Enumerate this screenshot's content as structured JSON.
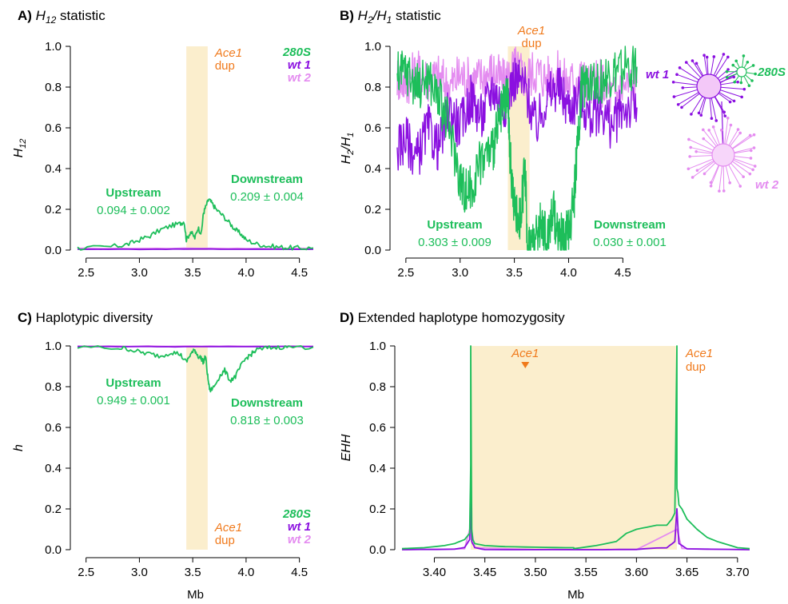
{
  "colors": {
    "s280": "#1dbe5a",
    "wt1": "#8b10e0",
    "wt2": "#e48cf0",
    "dup_text": "#f07a1c",
    "dup_fill": "#fbeecd",
    "axis": "#000000"
  },
  "chart_data": [
    {
      "id": "A",
      "type": "line",
      "panel_letter": "A)",
      "title": "H12 statistic",
      "title_sym": "H",
      "title_sub": "12",
      "title_rest": " statistic",
      "ylabel": "H",
      "ylabel_sub": "12",
      "xlabel": "",
      "xlim": [
        2.42,
        4.63
      ],
      "ylim": [
        0,
        1.0
      ],
      "xticks": [
        "2.5",
        "3.0",
        "3.5",
        "4.0",
        "4.5"
      ],
      "xtick_values": [
        2.5,
        3.0,
        3.5,
        4.0,
        4.5
      ],
      "yticks": [
        "0.0",
        "0.2",
        "0.4",
        "0.6",
        "0.8",
        "1.0"
      ],
      "ytick_values": [
        0,
        0.2,
        0.4,
        0.6,
        0.8,
        1.0
      ],
      "dup_region": [
        3.44,
        3.64
      ],
      "dup_label": [
        "Ace1",
        "dup"
      ],
      "dup_label_pos": "top",
      "legend": [
        "280S",
        "wt 1",
        "wt 2"
      ],
      "legend_pos": "top-right",
      "upstream": {
        "label": "Upstream",
        "value": "0.094 ± 0.002"
      },
      "downstream": {
        "label": "Downstream",
        "value": "0.209 ± 0.004"
      },
      "series": [
        {
          "name": "280S",
          "color_key": "s280",
          "x": [
            2.42,
            2.6,
            2.8,
            2.9,
            3.0,
            3.1,
            3.2,
            3.3,
            3.38,
            3.42,
            3.44,
            3.48,
            3.52,
            3.55,
            3.58,
            3.6,
            3.62,
            3.65,
            3.68,
            3.72,
            3.78,
            3.85,
            3.9,
            3.95,
            4.0,
            4.1,
            4.2,
            4.3,
            4.4,
            4.5,
            4.63
          ],
          "y": [
            0.01,
            0.012,
            0.02,
            0.03,
            0.05,
            0.07,
            0.1,
            0.12,
            0.13,
            0.14,
            0.05,
            0.09,
            0.06,
            0.11,
            0.08,
            0.18,
            0.21,
            0.25,
            0.23,
            0.2,
            0.17,
            0.13,
            0.1,
            0.08,
            0.05,
            0.03,
            0.02,
            0.015,
            0.012,
            0.01,
            0.01
          ]
        },
        {
          "name": "wt 1",
          "color_key": "wt1",
          "x": [
            2.42,
            3.0,
            3.5,
            4.0,
            4.63
          ],
          "y": [
            0.004,
            0.004,
            0.005,
            0.004,
            0.004
          ]
        },
        {
          "name": "wt 2",
          "color_key": "wt2",
          "x": [
            2.42,
            3.0,
            3.5,
            4.0,
            4.63
          ],
          "y": [
            0.008,
            0.008,
            0.009,
            0.008,
            0.008
          ]
        }
      ]
    },
    {
      "id": "B",
      "type": "line",
      "panel_letter": "B)",
      "title": "H2/H1 statistic",
      "ylabel": "H2/H1",
      "xlabel": "",
      "xlim": [
        2.42,
        4.63
      ],
      "ylim": [
        0,
        1.0
      ],
      "xticks": [
        "2.5",
        "3.0",
        "3.5",
        "4.0",
        "4.5"
      ],
      "xtick_values": [
        2.5,
        3.0,
        3.5,
        4.0,
        4.5
      ],
      "yticks": [
        "0.0",
        "0.2",
        "0.4",
        "0.6",
        "0.8",
        "1.0"
      ],
      "ytick_values": [
        0,
        0.2,
        0.4,
        0.6,
        0.8,
        1.0
      ],
      "dup_region": [
        3.44,
        3.64
      ],
      "dup_label": [
        "Ace1",
        "dup"
      ],
      "dup_label_pos": "top",
      "upstream": {
        "label": "Upstream",
        "value": "0.303 ± 0.009"
      },
      "downstream": {
        "label": "Downstream",
        "value": "0.030 ± 0.001"
      },
      "series": [
        {
          "name": "280S",
          "color_key": "s280",
          "x": [
            2.42,
            2.5,
            2.6,
            2.7,
            2.8,
            2.9,
            3.0,
            3.05,
            3.1,
            3.2,
            3.3,
            3.35,
            3.4,
            3.44,
            3.46,
            3.5,
            3.55,
            3.6,
            3.62,
            3.66,
            3.7,
            3.75,
            3.8,
            3.85,
            3.9,
            3.95,
            4.0,
            4.05,
            4.08,
            4.12,
            4.2,
            4.3,
            4.4,
            4.5,
            4.63
          ],
          "y": [
            0.85,
            0.88,
            0.8,
            0.85,
            0.75,
            0.6,
            0.35,
            0.28,
            0.3,
            0.45,
            0.5,
            0.6,
            0.7,
            0.75,
            0.45,
            0.2,
            0.15,
            0.4,
            0.03,
            0.04,
            0.05,
            0.15,
            0.05,
            0.2,
            0.1,
            0.05,
            0.1,
            0.25,
            0.5,
            0.8,
            0.85,
            0.82,
            0.85,
            0.88,
            0.9
          ]
        },
        {
          "name": "wt 1",
          "color_key": "wt1",
          "x": [
            2.42,
            2.5,
            2.6,
            2.7,
            2.8,
            2.9,
            3.0,
            3.1,
            3.2,
            3.3,
            3.4,
            3.5,
            3.6,
            3.7,
            3.8,
            3.9,
            4.0,
            4.1,
            4.2,
            4.3,
            4.4,
            4.5,
            4.63
          ],
          "y": [
            0.5,
            0.55,
            0.45,
            0.6,
            0.5,
            0.7,
            0.6,
            0.75,
            0.65,
            0.8,
            0.7,
            0.85,
            0.8,
            0.6,
            0.75,
            0.8,
            0.7,
            0.75,
            0.65,
            0.7,
            0.6,
            0.7,
            0.7
          ]
        },
        {
          "name": "wt 2",
          "color_key": "wt2",
          "x": [
            2.42,
            2.5,
            2.6,
            2.7,
            2.8,
            2.9,
            3.0,
            3.1,
            3.2,
            3.3,
            3.4,
            3.5,
            3.6,
            3.7,
            3.8,
            3.9,
            4.0,
            4.1,
            4.2,
            4.3,
            4.4,
            4.5,
            4.63
          ],
          "y": [
            0.85,
            0.82,
            0.88,
            0.84,
            0.85,
            0.8,
            0.86,
            0.83,
            0.85,
            0.88,
            0.82,
            0.9,
            0.85,
            0.88,
            0.84,
            0.86,
            0.82,
            0.85,
            0.8,
            0.83,
            0.75,
            0.8,
            0.82
          ]
        }
      ]
    },
    {
      "id": "C",
      "type": "line",
      "panel_letter": "C)",
      "title": "Haplotypic diversity",
      "ylabel": "h",
      "xlabel": "Mb",
      "xlim": [
        2.42,
        4.63
      ],
      "ylim": [
        0,
        1.0
      ],
      "xticks": [
        "2.5",
        "3.0",
        "3.5",
        "4.0",
        "4.5"
      ],
      "xtick_values": [
        2.5,
        3.0,
        3.5,
        4.0,
        4.5
      ],
      "yticks": [
        "0.0",
        "0.2",
        "0.4",
        "0.6",
        "0.8",
        "1.0"
      ],
      "ytick_values": [
        0,
        0.2,
        0.4,
        0.6,
        0.8,
        1.0
      ],
      "dup_region": [
        3.44,
        3.64
      ],
      "dup_label": [
        "Ace1",
        "dup"
      ],
      "dup_label_pos": "bottom",
      "legend": [
        "280S",
        "wt 1",
        "wt 2"
      ],
      "legend_pos": "bottom-right",
      "upstream": {
        "label": "Upstream",
        "value": "0.949 ± 0.001"
      },
      "downstream": {
        "label": "Downstream",
        "value": "0.818 ± 0.003"
      },
      "series": [
        {
          "name": "280S",
          "color_key": "s280",
          "x": [
            2.42,
            2.8,
            2.9,
            3.0,
            3.1,
            3.2,
            3.3,
            3.38,
            3.44,
            3.48,
            3.52,
            3.55,
            3.58,
            3.6,
            3.62,
            3.64,
            3.66,
            3.7,
            3.75,
            3.8,
            3.85,
            3.9,
            3.95,
            4.0,
            4.05,
            4.1,
            4.2,
            4.3,
            4.4,
            4.63
          ],
          "y": [
            0.995,
            0.99,
            0.985,
            0.97,
            0.96,
            0.95,
            0.97,
            0.96,
            0.92,
            0.96,
            0.98,
            0.95,
            0.94,
            0.92,
            0.95,
            0.85,
            0.78,
            0.8,
            0.85,
            0.88,
            0.83,
            0.85,
            0.9,
            0.94,
            0.96,
            0.98,
            0.99,
            0.995,
            0.995,
            0.995
          ]
        },
        {
          "name": "wt 1",
          "color_key": "wt1",
          "x": [
            2.42,
            3.0,
            3.5,
            4.0,
            4.63
          ],
          "y": [
            0.997,
            0.997,
            0.996,
            0.997,
            0.997
          ]
        },
        {
          "name": "wt 2",
          "color_key": "wt2",
          "x": [
            2.42,
            3.0,
            3.5,
            4.0,
            4.63
          ],
          "y": [
            0.999,
            0.999,
            0.999,
            0.999,
            0.999
          ]
        }
      ]
    },
    {
      "id": "D",
      "type": "line",
      "panel_letter": "D)",
      "title": "Extended haplotype homozygosity",
      "ylabel": "EHH",
      "xlabel": "Mb",
      "xlim": [
        3.368,
        3.712
      ],
      "ylim": [
        0,
        1.0
      ],
      "xticks": [
        "3.40",
        "3.45",
        "3.50",
        "3.55",
        "3.60",
        "3.65",
        "3.70"
      ],
      "xtick_values": [
        3.4,
        3.45,
        3.5,
        3.55,
        3.6,
        3.65,
        3.7
      ],
      "yticks": [
        "0.0",
        "0.2",
        "0.4",
        "0.6",
        "0.8",
        "1.0"
      ],
      "ytick_values": [
        0,
        0.2,
        0.4,
        0.6,
        0.8,
        1.0
      ],
      "dup_region": [
        3.436,
        3.64
      ],
      "dup_label": [
        "Ace1",
        "dup"
      ],
      "dup_label_pos": "top-right",
      "marker_label": "Ace1",
      "marker_x": 3.49,
      "marker_y": 0.91,
      "series": [
        {
          "name": "280S",
          "color_key": "s280",
          "x": [
            3.368,
            3.39,
            3.41,
            3.42,
            3.43,
            3.435,
            3.436,
            3.436,
            3.437,
            3.438,
            3.44,
            3.45,
            3.47,
            3.5,
            3.53,
            3.538,
            3.538,
            3.56,
            3.58,
            3.59,
            3.6,
            3.61,
            3.62,
            3.63,
            3.635,
            3.638,
            3.64,
            3.64,
            3.641,
            3.642,
            3.645,
            3.65,
            3.66,
            3.67,
            3.68,
            3.7,
            3.712
          ],
          "y": [
            0.005,
            0.01,
            0.02,
            0.03,
            0.05,
            0.08,
            0.42,
            1.0,
            0.1,
            0.05,
            0.03,
            0.02,
            0.015,
            0.012,
            0.01,
            0.01,
            0.005,
            0.02,
            0.04,
            0.08,
            0.1,
            0.11,
            0.12,
            0.12,
            0.15,
            0.18,
            1.0,
            0.3,
            0.28,
            0.22,
            0.2,
            0.15,
            0.1,
            0.06,
            0.04,
            0.01,
            0.005
          ]
        },
        {
          "name": "wt 1",
          "color_key": "wt1",
          "x": [
            3.368,
            3.42,
            3.43,
            3.435,
            3.436,
            3.437,
            3.44,
            3.45,
            3.55,
            3.6,
            3.63,
            3.638,
            3.64,
            3.642,
            3.65,
            3.712
          ],
          "y": [
            0.0,
            0.002,
            0.01,
            0.05,
            0.25,
            0.04,
            0.01,
            0.0,
            0.0,
            0.002,
            0.01,
            0.04,
            0.2,
            0.03,
            0.005,
            0.0
          ]
        },
        {
          "name": "wt 2",
          "color_key": "wt2",
          "x": [
            3.368,
            3.43,
            3.436,
            3.44,
            3.5,
            3.6,
            3.64,
            3.645,
            3.712
          ],
          "y": [
            0.0,
            0.005,
            0.12,
            0.01,
            0.0,
            0.0,
            0.1,
            0.005,
            0.0
          ]
        }
      ]
    }
  ],
  "network": {
    "labels": [
      "wt 1",
      "280S",
      "wt 2"
    ]
  }
}
